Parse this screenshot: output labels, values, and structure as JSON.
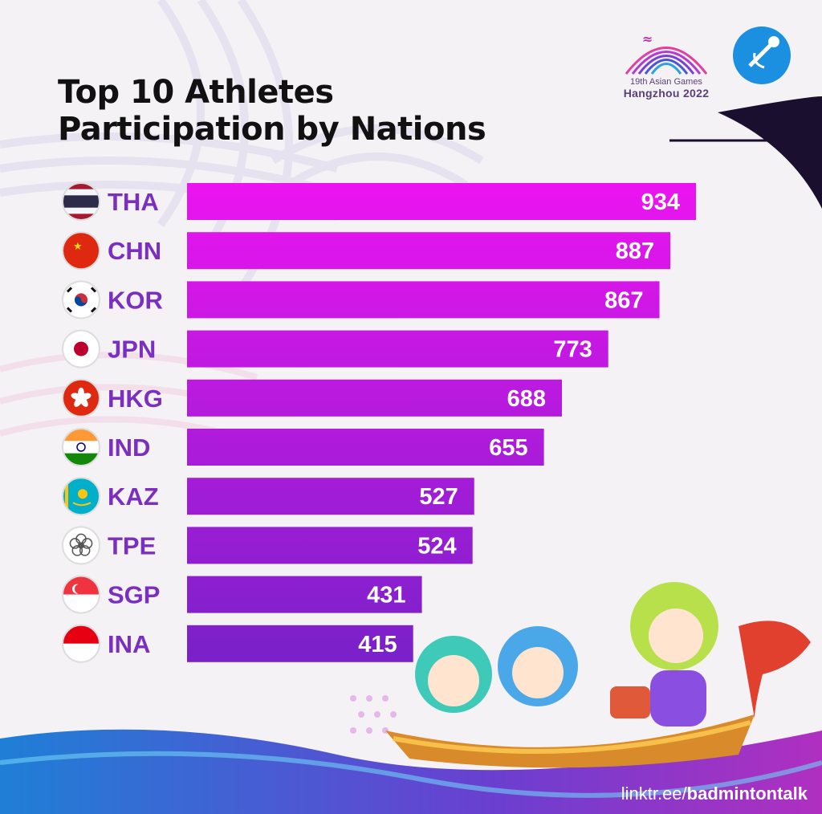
{
  "title": {
    "line1": "Top 10 Athletes",
    "line2": "Participation by Nations"
  },
  "logo": {
    "line1": "19th Asian Games",
    "line2": "Hangzhou 2022"
  },
  "footer": {
    "link_prefix": "linktr.ee/",
    "link_handle": "badmintontalk"
  },
  "colors": {
    "bar_top": "#ec14f0",
    "bar_bottom": "#7a21c9",
    "label": "#7b2fc0",
    "value": "#ffffff"
  },
  "chart_data": {
    "type": "bar",
    "orientation": "horizontal",
    "categories": [
      "THA",
      "CHN",
      "KOR",
      "JPN",
      "HKG",
      "IND",
      "KAZ",
      "TPE",
      "SGP",
      "INA"
    ],
    "values": [
      934,
      887,
      867,
      773,
      688,
      655,
      527,
      524,
      431,
      415
    ],
    "flags": [
      "thailand-flag-icon",
      "china-flag-icon",
      "korea-flag-icon",
      "japan-flag-icon",
      "hong-kong-flag-icon",
      "india-flag-icon",
      "kazakhstan-flag-icon",
      "chinese-taipei-flag-icon",
      "singapore-flag-icon",
      "indonesia-flag-icon"
    ],
    "grid": false,
    "legend": "none"
  }
}
